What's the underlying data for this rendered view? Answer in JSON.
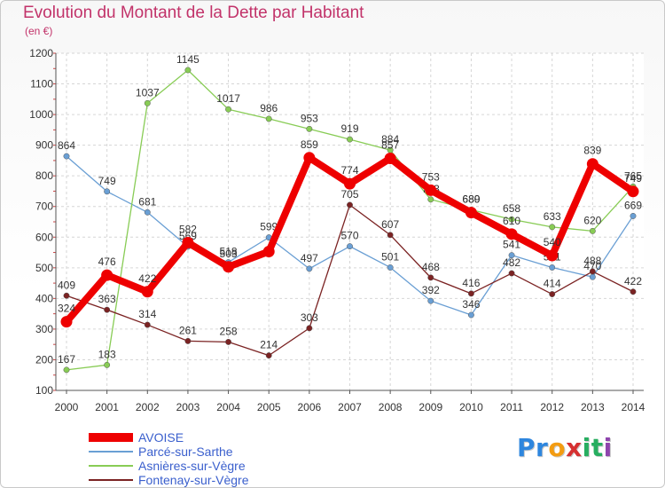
{
  "title": "Evolution du Montant de la Dette par Habitant",
  "unit_label": "(en €)",
  "logo": {
    "letters": [
      {
        "ch": "P",
        "color": "#2e86de"
      },
      {
        "ch": "r",
        "color": "#2e86de"
      },
      {
        "ch": "o",
        "color": "#f39c12"
      },
      {
        "ch": "x",
        "color": "#d63031"
      },
      {
        "ch": "i",
        "color": "#27ae60"
      },
      {
        "ch": "t",
        "color": "#27ae60"
      },
      {
        "ch": "i",
        "color": "#8e44ad"
      }
    ]
  },
  "chart_data": {
    "type": "line",
    "title": "Evolution du Montant de la Dette par Habitant",
    "ylabel": "(en €)",
    "x": [
      "2000",
      "2001",
      "2002",
      "2003",
      "2004",
      "2005",
      "2006",
      "2007",
      "2008",
      "2009",
      "2010",
      "2011",
      "2012",
      "2013",
      "2014"
    ],
    "ylim": [
      100,
      1200
    ],
    "yticks": [
      "100",
      "200",
      "300",
      "400",
      "500",
      "600",
      "700",
      "800",
      "900",
      "1000",
      "1100",
      "1200"
    ],
    "grid": true,
    "legend": "bottom-left",
    "series": [
      {
        "name": "AVOISE",
        "color": "#ee0000",
        "emphasis": true,
        "values": [
          324,
          476,
          422,
          582,
          503,
          553,
          859,
          774,
          857,
          753,
          680,
          610,
          540,
          839,
          749
        ],
        "labels": [
          "324",
          "476",
          "422",
          "582",
          "503",
          "",
          "859",
          "774",
          "857",
          "753",
          "680",
          "610",
          "540",
          "839",
          "749"
        ]
      },
      {
        "name": "Parcé-sur-Sarthe",
        "color": "#6a9fd4",
        "values": [
          864,
          749,
          681,
          569,
          518,
          599,
          497,
          570,
          501,
          392,
          346,
          541,
          501,
          470,
          669
        ],
        "labels": [
          "864",
          "749",
          "681",
          "569",
          "518",
          "599",
          "497",
          "570",
          "501",
          "392",
          "346",
          "541",
          "501",
          "470",
          "669"
        ]
      },
      {
        "name": "Asnières-sur-Vègre",
        "color": "#88cc55",
        "values": [
          167,
          183,
          1037,
          1145,
          1017,
          986,
          953,
          919,
          884,
          723,
          689,
          658,
          633,
          620,
          765
        ],
        "labels": [
          "167",
          "183",
          "1037",
          "1145",
          "1017",
          "986",
          "953",
          "919",
          "884",
          "723",
          "689",
          "658",
          "633",
          "620",
          "765"
        ]
      },
      {
        "name": "Fontenay-sur-Vègre",
        "color": "#7b2323",
        "values": [
          409,
          363,
          314,
          261,
          258,
          214,
          303,
          705,
          607,
          468,
          416,
          482,
          414,
          488,
          422
        ],
        "labels": [
          "409",
          "363",
          "314",
          "261",
          "258",
          "214",
          "303",
          "705",
          "607",
          "468",
          "416",
          "482",
          "414",
          "488",
          "422"
        ]
      }
    ]
  }
}
